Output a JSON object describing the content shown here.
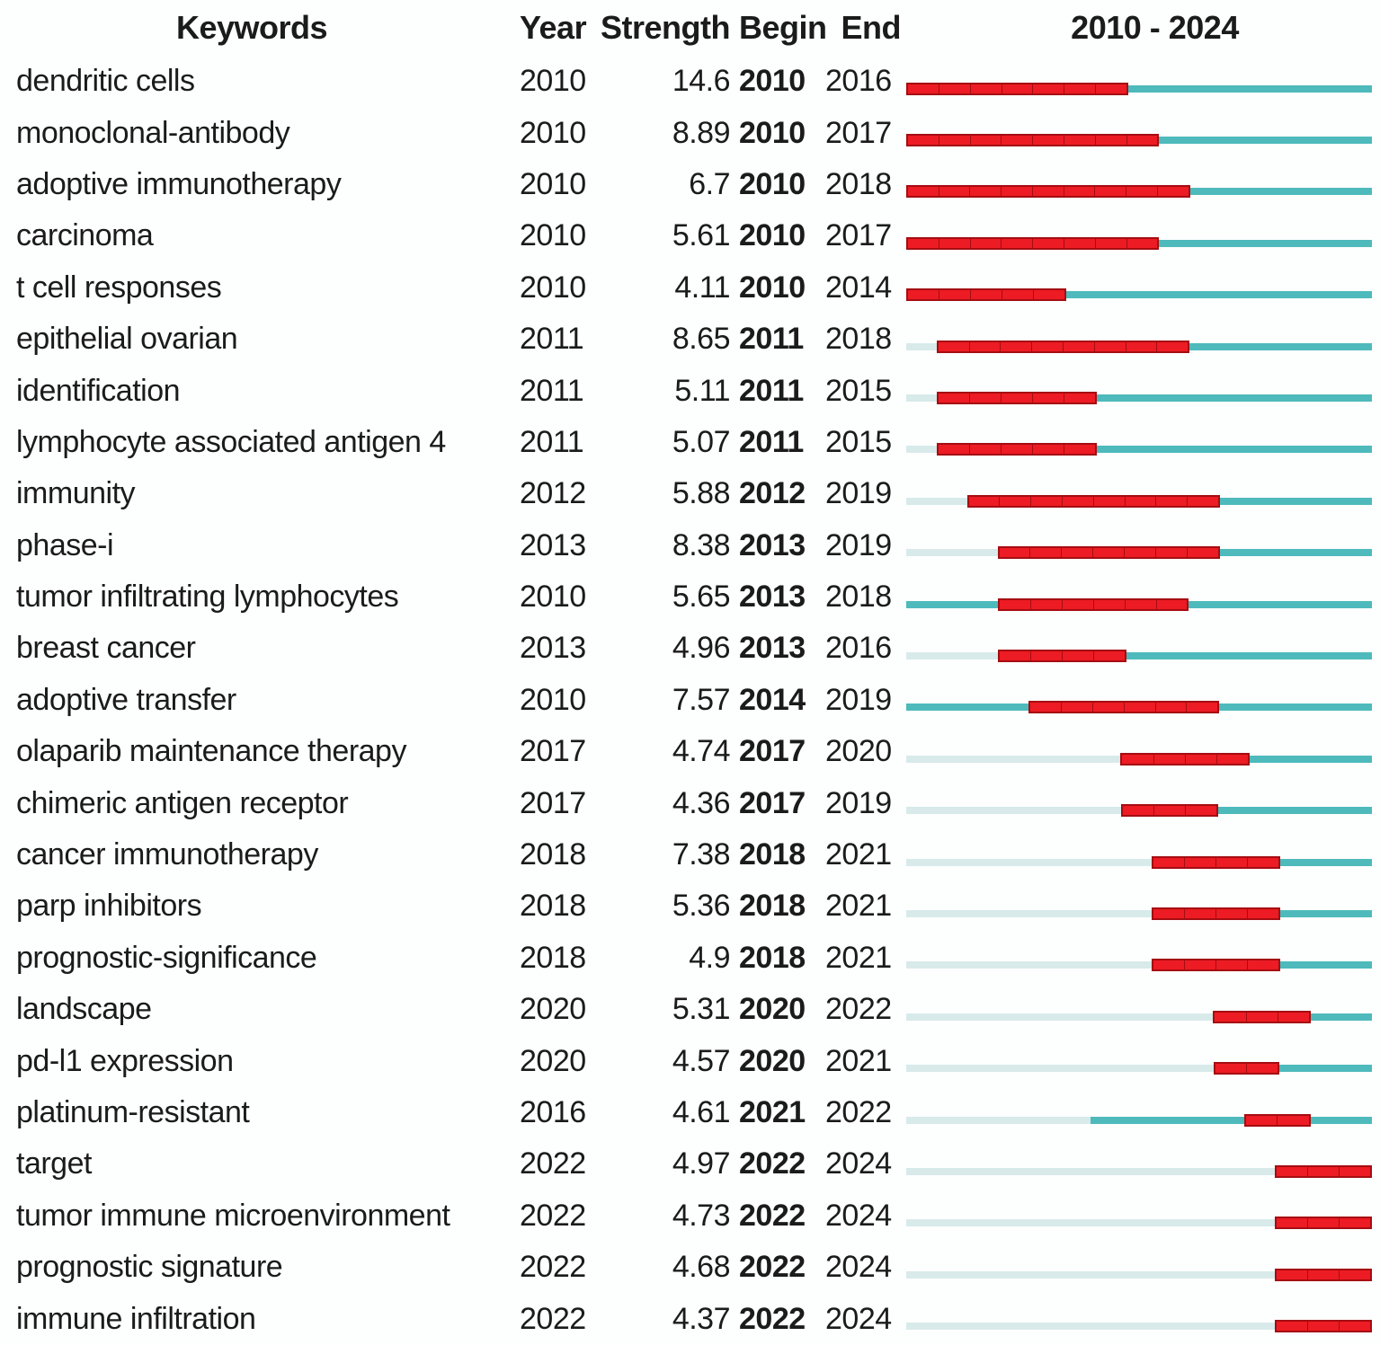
{
  "header": {
    "keywords": "Keywords",
    "year": "Year",
    "strength": "Strength",
    "begin": "Begin",
    "end": "End",
    "timeline_title": "2010 - 2024"
  },
  "colors": {
    "burst": "#ed1b23",
    "burst_border": "#a50d12",
    "active": "#4ebabc",
    "inactive": "#d8eaea",
    "text": "#1b1b1b",
    "background": "#fdfefe"
  },
  "chart_data": {
    "type": "table",
    "title": "2010 - 2024",
    "columns": [
      "Keywords",
      "Year",
      "Strength",
      "Begin",
      "End"
    ],
    "timeline": {
      "start": 2010,
      "end": 2024
    },
    "legend": {
      "red_segment": "burst period (Begin to End)",
      "teal_segment": "keyword active (from first appearance Year)",
      "pale_segment": "before first appearance"
    },
    "rows": [
      {
        "keyword": "dendritic cells",
        "year": 2010,
        "strength": "14.6",
        "begin": 2010,
        "end": 2016
      },
      {
        "keyword": "monoclonal-antibody",
        "year": 2010,
        "strength": "8.89",
        "begin": 2010,
        "end": 2017
      },
      {
        "keyword": "adoptive immunotherapy",
        "year": 2010,
        "strength": "6.7",
        "begin": 2010,
        "end": 2018
      },
      {
        "keyword": "carcinoma",
        "year": 2010,
        "strength": "5.61",
        "begin": 2010,
        "end": 2017
      },
      {
        "keyword": "t cell responses",
        "year": 2010,
        "strength": "4.11",
        "begin": 2010,
        "end": 2014
      },
      {
        "keyword": "epithelial ovarian",
        "year": 2011,
        "strength": "8.65",
        "begin": 2011,
        "end": 2018
      },
      {
        "keyword": "identification",
        "year": 2011,
        "strength": "5.11",
        "begin": 2011,
        "end": 2015
      },
      {
        "keyword": "lymphocyte associated antigen 4",
        "year": 2011,
        "strength": "5.07",
        "begin": 2011,
        "end": 2015
      },
      {
        "keyword": "immunity",
        "year": 2012,
        "strength": "5.88",
        "begin": 2012,
        "end": 2019
      },
      {
        "keyword": "phase-i",
        "year": 2013,
        "strength": "8.38",
        "begin": 2013,
        "end": 2019
      },
      {
        "keyword": "tumor infiltrating lymphocytes",
        "year": 2010,
        "strength": "5.65",
        "begin": 2013,
        "end": 2018
      },
      {
        "keyword": "breast cancer",
        "year": 2013,
        "strength": "4.96",
        "begin": 2013,
        "end": 2016
      },
      {
        "keyword": "adoptive transfer",
        "year": 2010,
        "strength": "7.57",
        "begin": 2014,
        "end": 2019
      },
      {
        "keyword": "olaparib maintenance therapy",
        "year": 2017,
        "strength": "4.74",
        "begin": 2017,
        "end": 2020
      },
      {
        "keyword": "chimeric antigen receptor",
        "year": 2017,
        "strength": "4.36",
        "begin": 2017,
        "end": 2019
      },
      {
        "keyword": "cancer immunotherapy",
        "year": 2018,
        "strength": "7.38",
        "begin": 2018,
        "end": 2021
      },
      {
        "keyword": "parp inhibitors",
        "year": 2018,
        "strength": "5.36",
        "begin": 2018,
        "end": 2021
      },
      {
        "keyword": "prognostic-significance",
        "year": 2018,
        "strength": "4.9",
        "begin": 2018,
        "end": 2021
      },
      {
        "keyword": "landscape",
        "year": 2020,
        "strength": "5.31",
        "begin": 2020,
        "end": 2022
      },
      {
        "keyword": "pd-l1 expression",
        "year": 2020,
        "strength": "4.57",
        "begin": 2020,
        "end": 2021
      },
      {
        "keyword": "platinum-resistant",
        "year": 2016,
        "strength": "4.61",
        "begin": 2021,
        "end": 2022
      },
      {
        "keyword": "target",
        "year": 2022,
        "strength": "4.97",
        "begin": 2022,
        "end": 2024
      },
      {
        "keyword": "tumor immune microenvironment",
        "year": 2022,
        "strength": "4.73",
        "begin": 2022,
        "end": 2024
      },
      {
        "keyword": "prognostic signature",
        "year": 2022,
        "strength": "4.68",
        "begin": 2022,
        "end": 2024
      },
      {
        "keyword": "immune infiltration",
        "year": 2022,
        "strength": "4.37",
        "begin": 2022,
        "end": 2024
      }
    ]
  }
}
